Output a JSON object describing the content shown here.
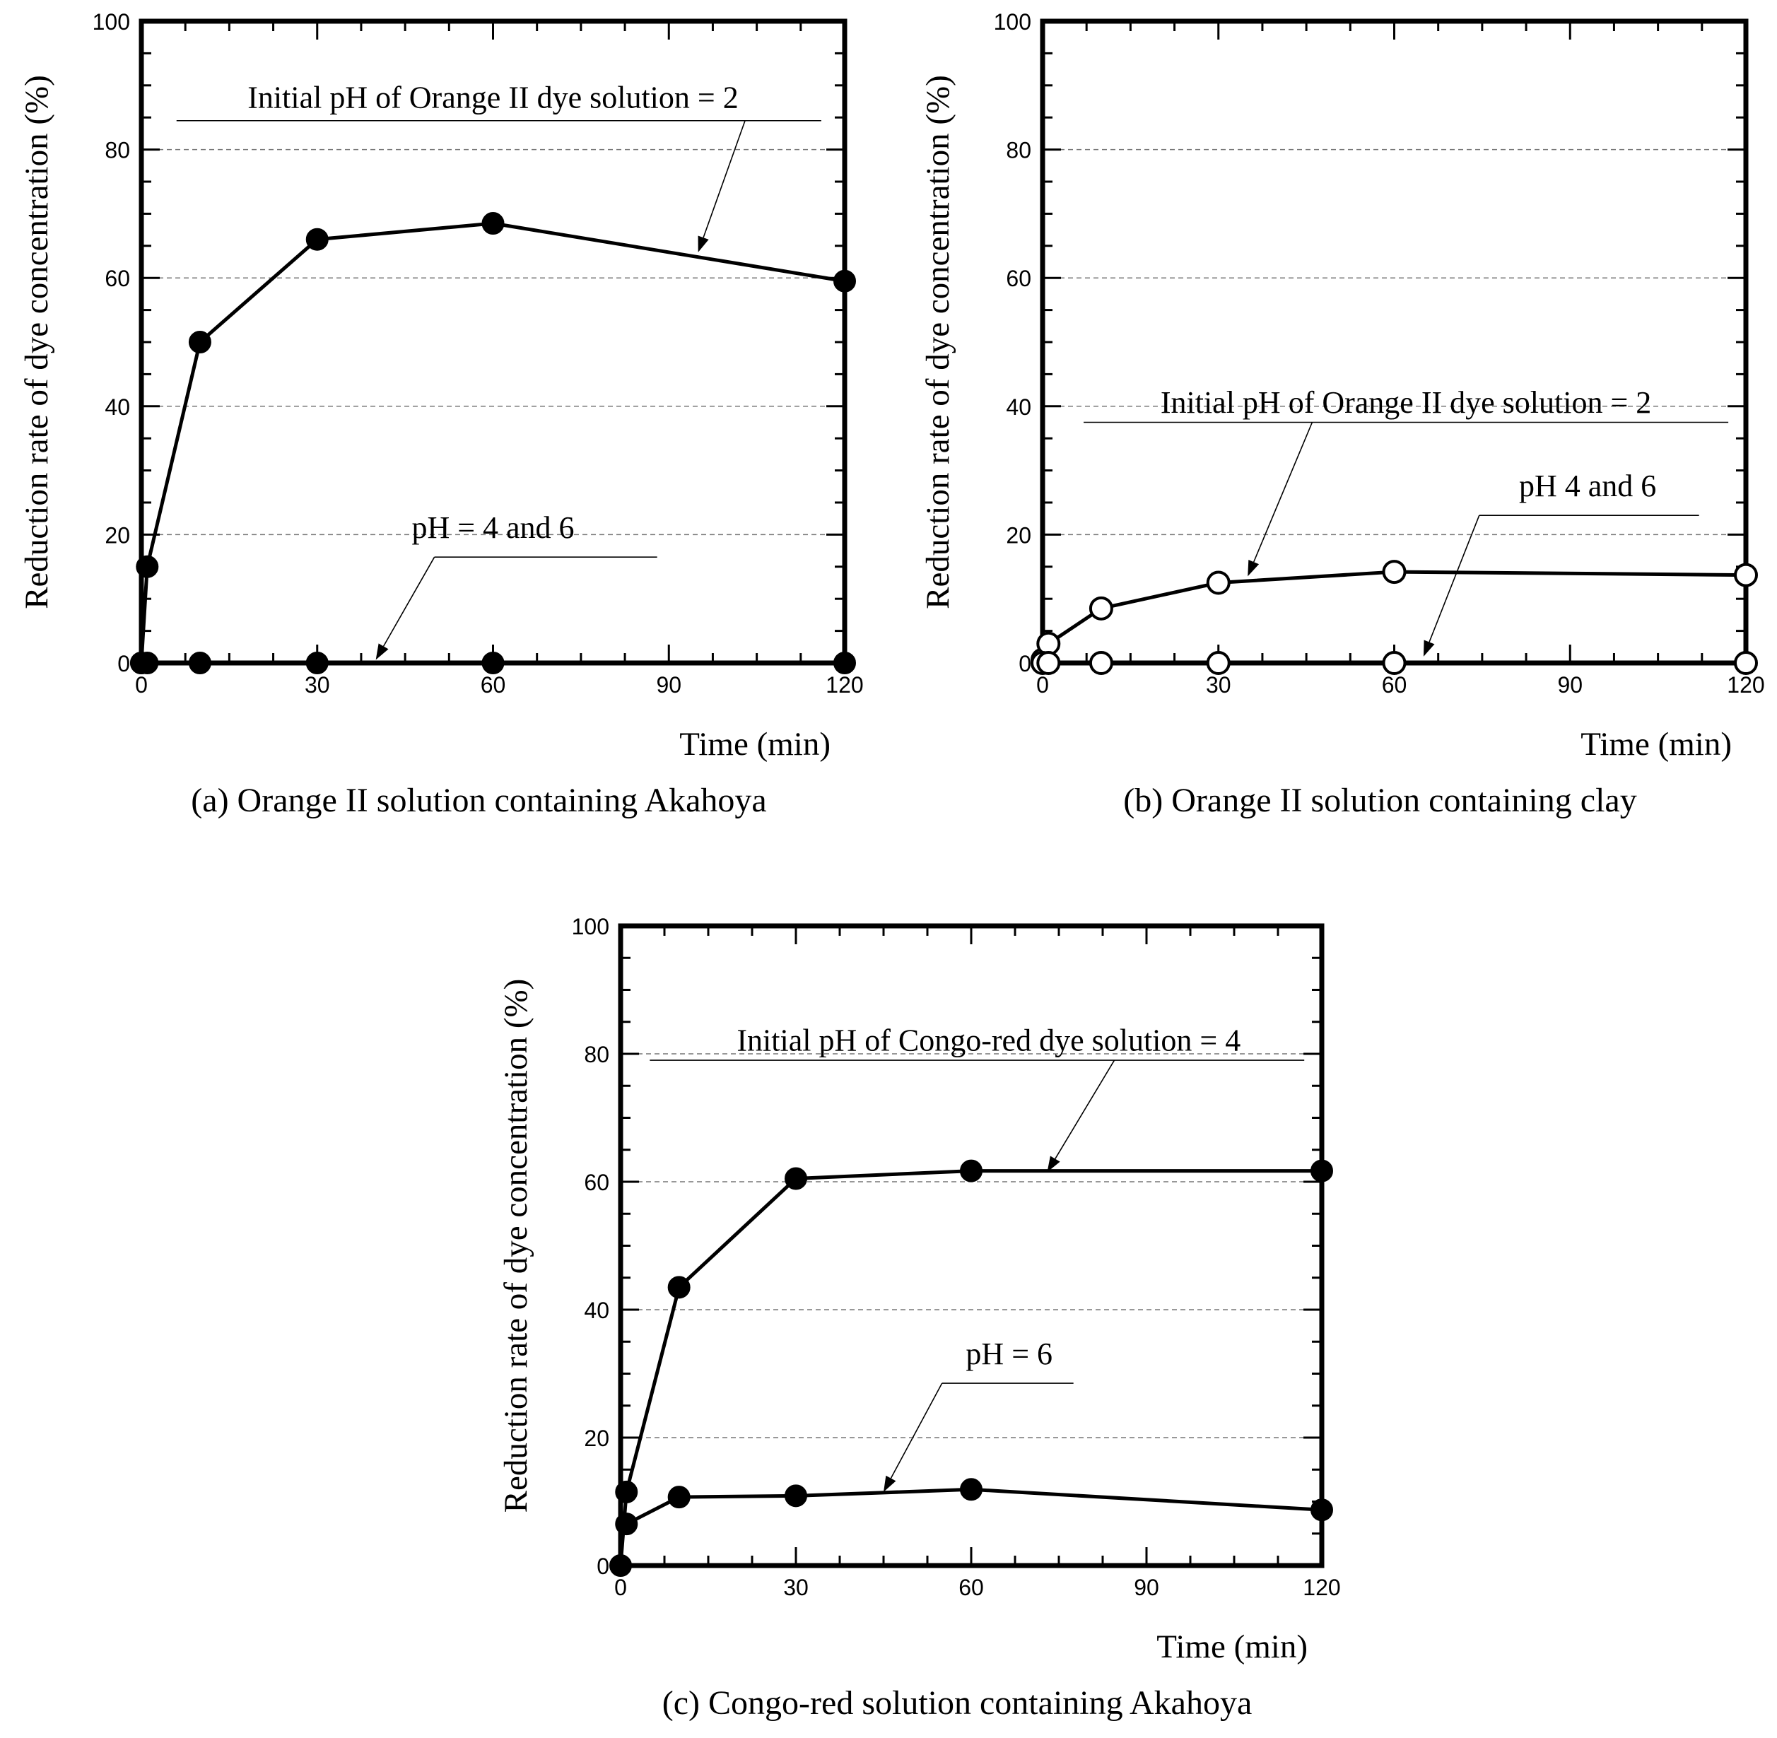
{
  "chart_data": [
    {
      "id": "a",
      "type": "line",
      "caption": "(a) Orange II solution containing Akahoya",
      "xlabel": "Time (min)",
      "ylabel": "Reduction rate of dye concentration (%)",
      "xlim": [
        0,
        120
      ],
      "ylim": [
        0,
        100
      ],
      "xticks": [
        0,
        30,
        60,
        90,
        120
      ],
      "yticks": [
        0,
        20,
        40,
        60,
        80,
        100
      ],
      "grid": true,
      "series": [
        {
          "name": "pH = 2",
          "marker": "filled",
          "x": [
            0,
            1,
            10,
            30,
            60,
            120
          ],
          "y": [
            0,
            15,
            50,
            66,
            68.5,
            59.5
          ]
        },
        {
          "name": "pH = 4 and 6",
          "marker": "filled",
          "x": [
            0,
            1,
            10,
            30,
            60,
            120
          ],
          "y": [
            0,
            0,
            0,
            0,
            0,
            0
          ]
        }
      ],
      "annotations": [
        {
          "text": "Initial pH of Orange II dye solution = 2",
          "tx": 60,
          "ty": 86.5,
          "ux0": 6,
          "ux1": 116,
          "uy": 84.5,
          "fromx": 103,
          "fromy": 84.5,
          "tox": 95,
          "toy": 64
        },
        {
          "text": "pH = 4 and 6",
          "tx": 60,
          "ty": 19.5,
          "ux0": 50,
          "ux1": 88,
          "uy": 16.5,
          "fromx": 50,
          "fromy": 16.5,
          "tox": 40,
          "toy": 0.5
        }
      ]
    },
    {
      "id": "b",
      "type": "line",
      "caption": "(b) Orange II solution containing clay",
      "xlabel": "Time (min)",
      "ylabel": "Reduction rate of dye concentration (%)",
      "xlim": [
        0,
        120
      ],
      "ylim": [
        0,
        100
      ],
      "xticks": [
        0,
        30,
        60,
        90,
        120
      ],
      "yticks": [
        0,
        20,
        40,
        60,
        80,
        100
      ],
      "grid": true,
      "series": [
        {
          "name": "pH = 2",
          "marker": "open",
          "x": [
            0,
            1,
            10,
            30,
            60,
            120
          ],
          "y": [
            0.5,
            3,
            8.5,
            12.5,
            14.2,
            13.7
          ]
        },
        {
          "name": "pH 4 and 6",
          "marker": "open",
          "x": [
            0,
            1,
            10,
            30,
            60,
            120
          ],
          "y": [
            0,
            0,
            0,
            0,
            0,
            0
          ]
        }
      ],
      "annotations": [
        {
          "text": "Initial pH of Orange II dye solution = 2",
          "tx": 62,
          "ty": 39,
          "ux0": 7,
          "ux1": 117,
          "uy": 37.5,
          "fromx": 46,
          "fromy": 37.5,
          "tox": 35,
          "toy": 13.5
        },
        {
          "text": "pH 4 and 6",
          "tx": 93,
          "ty": 26,
          "ux0": 74.5,
          "ux1": 112,
          "uy": 23,
          "fromx": 74.5,
          "fromy": 23,
          "tox": 65,
          "toy": 1
        }
      ]
    },
    {
      "id": "c",
      "type": "line",
      "caption": "(c) Congo-red solution containing Akahoya",
      "xlabel": "Time (min)",
      "ylabel": "Reduction rate of dye concentration (%)",
      "xlim": [
        0,
        120
      ],
      "ylim": [
        0,
        100
      ],
      "xticks": [
        0,
        30,
        60,
        90,
        120
      ],
      "yticks": [
        0,
        20,
        40,
        60,
        80,
        100
      ],
      "grid": true,
      "series": [
        {
          "name": "pH = 4",
          "marker": "filled",
          "x": [
            0,
            1,
            10,
            30,
            60,
            120
          ],
          "y": [
            0,
            11.5,
            43.5,
            60.5,
            61.7,
            61.7
          ]
        },
        {
          "name": "pH = 6",
          "marker": "filled",
          "x": [
            1,
            10,
            30,
            60,
            120
          ],
          "y": [
            6.5,
            10.7,
            10.9,
            11.9,
            8.7
          ]
        }
      ],
      "annotations": [
        {
          "text": "Initial pH of Congo-red dye solution = 4",
          "tx": 63,
          "ty": 80.5,
          "ux0": 5,
          "ux1": 117,
          "uy": 79,
          "fromx": 84.5,
          "fromy": 79,
          "tox": 73,
          "toy": 61.5
        },
        {
          "text": "pH = 6",
          "tx": 66.5,
          "ty": 31.5,
          "ux0": 55,
          "ux1": 77.5,
          "uy": 28.5,
          "fromx": 55,
          "fromy": 28.5,
          "tox": 45,
          "toy": 11.5
        }
      ]
    }
  ]
}
